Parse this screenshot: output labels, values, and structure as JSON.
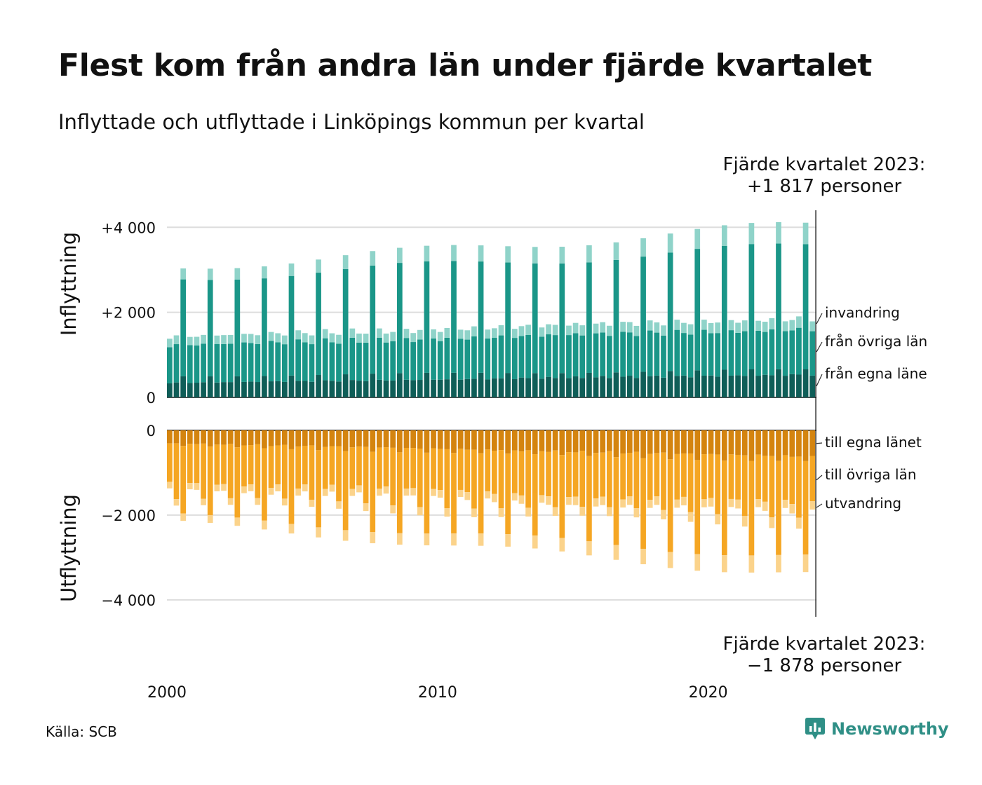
{
  "title": "Flest kom från andra län under fjärde kvartalet",
  "subtitle": "Inflyttade och utflyttade i Linköpings kommun per kvartal",
  "annotations": {
    "top_line1": "Fjärde kvartalet 2023:",
    "top_line2": "+1 817 personer",
    "bottom_line1": "Fjärde kvartalet 2023:",
    "bottom_line2": "−1 878 personer"
  },
  "source": "Källa: SCB",
  "logo": {
    "name": "Newsworthy",
    "icon": "newsworthy-chart-icon",
    "color": "#2f8f86"
  },
  "chart_data": {
    "type": "bar",
    "stacked": true,
    "x_start": "2000 Q1",
    "x_end": "2023 Q4",
    "x_ticks": [
      {
        "year": 2000,
        "label": "2000"
      },
      {
        "year": 2010,
        "label": "2010"
      },
      {
        "year": 2020,
        "label": "2020"
      }
    ],
    "panels": [
      {
        "axis_label": "Inflyttning",
        "ylim": [
          0,
          4400
        ],
        "y_ticks": [
          {
            "value": 0,
            "label": "0"
          },
          {
            "value": 2000,
            "label": "+2 000"
          },
          {
            "value": 4000,
            "label": "+4 000"
          }
        ],
        "quarter_patterns_by_year": [
          {
            "name": "från egna läne",
            "color": "#0f5e58",
            "start": [
              330,
              340,
              500,
              350
            ],
            "end": [
              560,
              520,
              650,
              530
            ]
          },
          {
            "name": "från övriga län",
            "color": "#1a9688",
            "start": [
              850,
              870,
              2300,
              920
            ],
            "end": [
              1050,
              1070,
              2900,
              1080
            ]
          },
          {
            "name": "invandring",
            "color": "#8fd3c9",
            "start": [
              200,
              200,
              260,
              200
            ],
            "end": [
              250,
              260,
              500,
              240
            ]
          }
        ]
      },
      {
        "axis_label": "Utflyttning",
        "ylim": [
          -4400,
          0
        ],
        "y_ticks": [
          {
            "value": 0,
            "label": "0"
          },
          {
            "value": -2000,
            "label": "−2 000"
          },
          {
            "value": -4000,
            "label": "−4 000"
          }
        ],
        "quarter_patterns_by_year": [
          {
            "name": "till egna länet",
            "color": "#d4840f",
            "start": [
              300,
              300,
              380,
              320
            ],
            "end": [
              620,
              600,
              740,
              620
            ]
          },
          {
            "name": "till övriga län",
            "color": "#f5a623",
            "start": [
              880,
              1300,
              1650,
              930
            ],
            "end": [
              1100,
              1400,
              2250,
              1100
            ]
          },
          {
            "name": "utvandring",
            "color": "#fbd38b",
            "start": [
              150,
              150,
              180,
              150
            ],
            "end": [
              220,
              250,
              420,
              200
            ]
          }
        ]
      }
    ],
    "marker_line": "2023 Q4"
  }
}
